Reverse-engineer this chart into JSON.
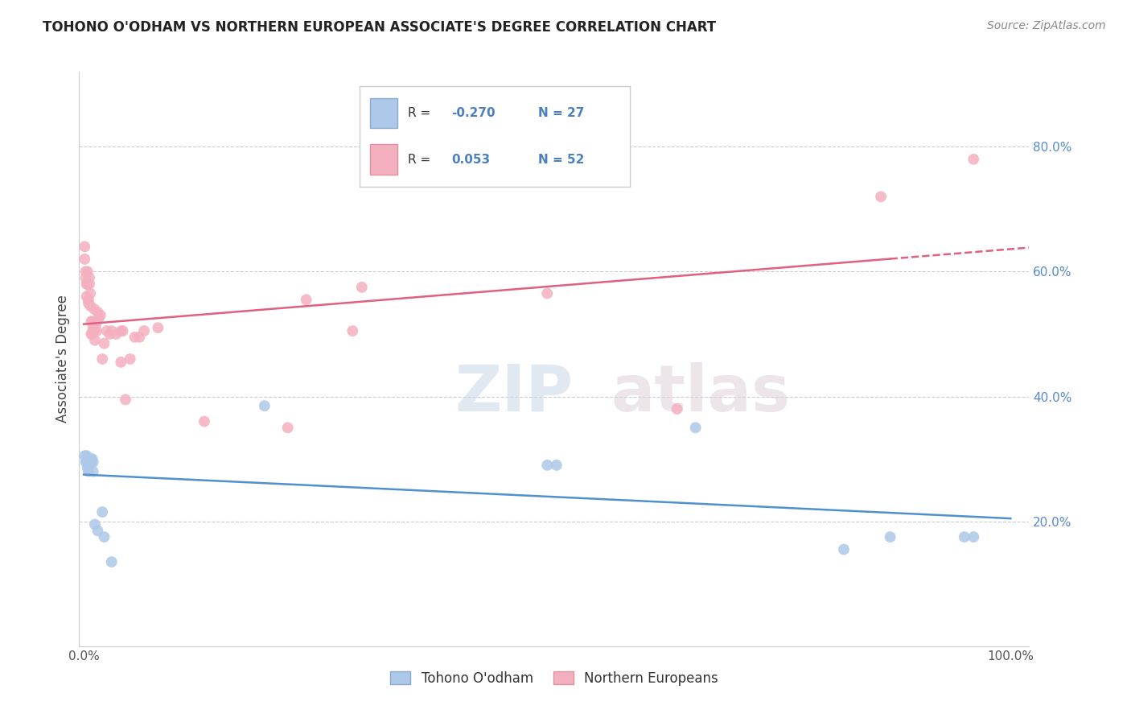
{
  "title": "TOHONO O'ODHAM VS NORTHERN EUROPEAN ASSOCIATE'S DEGREE CORRELATION CHART",
  "source": "Source: ZipAtlas.com",
  "ylabel": "Associate's Degree",
  "ytick_labels": [
    "20.0%",
    "40.0%",
    "60.0%",
    "80.0%"
  ],
  "ytick_values": [
    0.2,
    0.4,
    0.6,
    0.8
  ],
  "blue_R": -0.27,
  "blue_N": 27,
  "pink_R": 0.053,
  "pink_N": 52,
  "blue_color": "#adc8e8",
  "pink_color": "#f5b0c0",
  "blue_line_color": "#5090d0",
  "pink_line_color": "#e06080",
  "blue_points_x": [
    0.001,
    0.002,
    0.003,
    0.003,
    0.004,
    0.004,
    0.005,
    0.005,
    0.006,
    0.007,
    0.008,
    0.009,
    0.01,
    0.01,
    0.012,
    0.015,
    0.02,
    0.022,
    0.03,
    0.195,
    0.5,
    0.51,
    0.66,
    0.82,
    0.87,
    0.95,
    0.96
  ],
  "blue_points_y": [
    0.305,
    0.295,
    0.305,
    0.295,
    0.3,
    0.285,
    0.295,
    0.28,
    0.295,
    0.3,
    0.295,
    0.3,
    0.295,
    0.28,
    0.195,
    0.185,
    0.215,
    0.175,
    0.135,
    0.385,
    0.29,
    0.29,
    0.35,
    0.155,
    0.175,
    0.175,
    0.175
  ],
  "pink_points_x": [
    0.001,
    0.001,
    0.002,
    0.002,
    0.003,
    0.003,
    0.004,
    0.004,
    0.005,
    0.005,
    0.006,
    0.006,
    0.007,
    0.007,
    0.008,
    0.008,
    0.009,
    0.009,
    0.01,
    0.01,
    0.011,
    0.011,
    0.012,
    0.013,
    0.014,
    0.015,
    0.016,
    0.018,
    0.02,
    0.022,
    0.025,
    0.028,
    0.03,
    0.035,
    0.04,
    0.04,
    0.042,
    0.045,
    0.05,
    0.055,
    0.06,
    0.065,
    0.08,
    0.13,
    0.22,
    0.24,
    0.29,
    0.3,
    0.5,
    0.64,
    0.86,
    0.96
  ],
  "pink_points_y": [
    0.62,
    0.64,
    0.6,
    0.59,
    0.58,
    0.56,
    0.58,
    0.6,
    0.55,
    0.555,
    0.59,
    0.58,
    0.545,
    0.565,
    0.5,
    0.52,
    0.5,
    0.52,
    0.505,
    0.51,
    0.54,
    0.505,
    0.49,
    0.515,
    0.505,
    0.535,
    0.525,
    0.53,
    0.46,
    0.485,
    0.505,
    0.5,
    0.505,
    0.5,
    0.505,
    0.455,
    0.505,
    0.395,
    0.46,
    0.495,
    0.495,
    0.505,
    0.51,
    0.36,
    0.35,
    0.555,
    0.505,
    0.575,
    0.565,
    0.38,
    0.72,
    0.78
  ]
}
